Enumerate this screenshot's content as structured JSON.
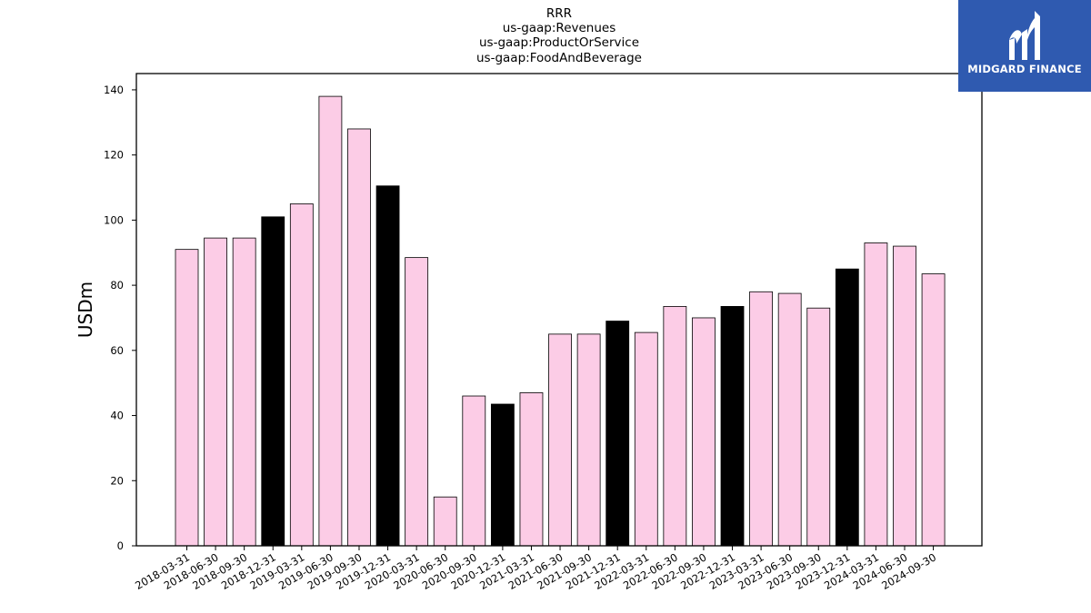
{
  "chart_data": {
    "type": "bar",
    "title_lines": [
      "RRR",
      "us-gaap:Revenues",
      "us-gaap:ProductOrService",
      "us-gaap:FoodAndBeverage"
    ],
    "ylabel": "USDm",
    "xlabel": "",
    "ylim": [
      0,
      145
    ],
    "yticks": [
      0,
      20,
      40,
      60,
      80,
      100,
      120,
      140
    ],
    "categories": [
      "2018-03-31",
      "2018-06-30",
      "2018-09-30",
      "2018-12-31",
      "2019-03-31",
      "2019-06-30",
      "2019-09-30",
      "2019-12-31",
      "2020-03-31",
      "2020-06-30",
      "2020-09-30",
      "2020-12-31",
      "2021-03-31",
      "2021-06-30",
      "2021-09-30",
      "2021-12-31",
      "2022-03-31",
      "2022-06-30",
      "2022-09-30",
      "2022-12-31",
      "2023-03-31",
      "2023-06-30",
      "2023-09-30",
      "2023-12-31",
      "2024-03-31",
      "2024-06-30",
      "2024-09-30"
    ],
    "values": [
      91,
      94.5,
      94.5,
      101,
      105,
      138,
      128,
      110.5,
      88.5,
      15,
      46,
      43.5,
      47,
      65,
      65,
      69,
      65.5,
      73.5,
      70,
      73.5,
      78,
      77.5,
      73,
      85,
      93,
      92,
      83.5
    ],
    "highlight_categories": [
      "2018-12-31",
      "2019-12-31",
      "2020-12-31",
      "2021-12-31",
      "2022-12-31",
      "2023-12-31"
    ],
    "colors": {
      "bar": "#fccce6",
      "highlight": "#000000",
      "edge": "#000000"
    },
    "grid": false,
    "legend": "none"
  },
  "logo": {
    "text": "MIDGARD FINANCE",
    "background": "#2f5ab0"
  }
}
